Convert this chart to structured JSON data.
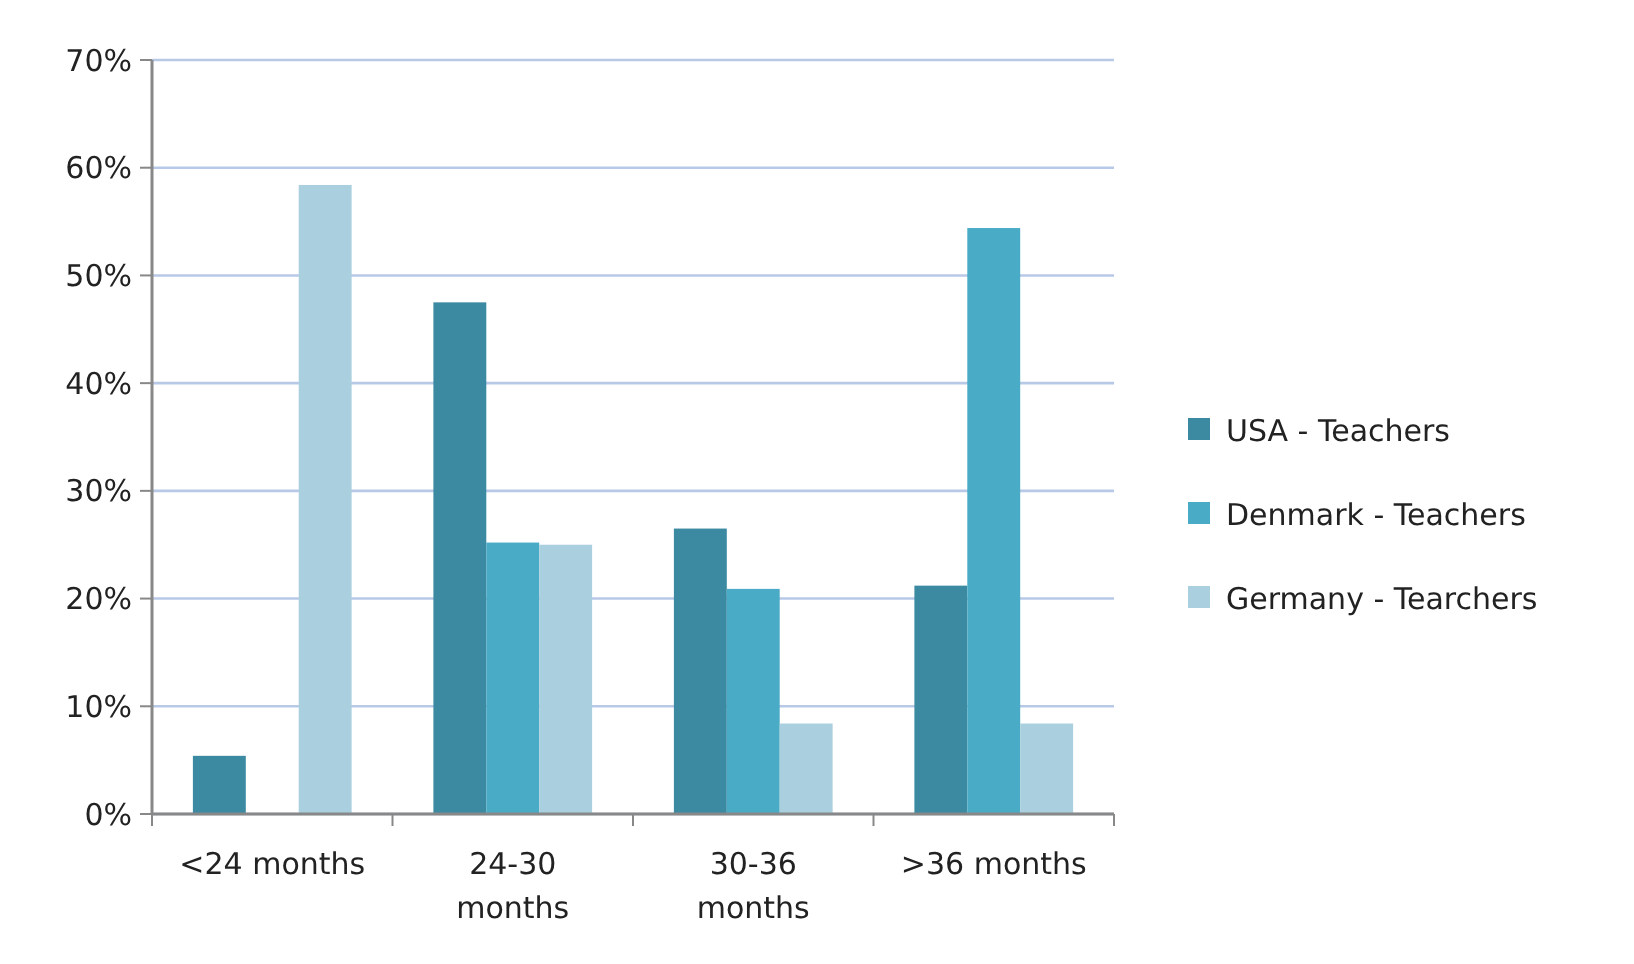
{
  "chart_data": {
    "type": "bar",
    "categories": [
      "<24 months",
      "24-30 months",
      "30-36 months",
      ">36 months"
    ],
    "series": [
      {
        "name": "USA - Teachers",
        "color": "#3b8aa2",
        "values": [
          5.4,
          47.5,
          26.5,
          21.2
        ]
      },
      {
        "name": "Denmark - Teachers",
        "color": "#4aabc6",
        "values": [
          0,
          25.2,
          20.9,
          54.4
        ]
      },
      {
        "name": "Germany - Tearchers",
        "color": "#aacfde",
        "values": [
          58.4,
          25,
          8.4,
          8.4
        ]
      }
    ],
    "ylim": [
      0,
      70
    ],
    "yticks": [
      {
        "value": 0,
        "label": "0%"
      },
      {
        "value": 10,
        "label": "10%"
      },
      {
        "value": 20,
        "label": "20%"
      },
      {
        "value": 30,
        "label": "30%"
      },
      {
        "value": 40,
        "label": "40%"
      },
      {
        "value": 50,
        "label": "50%"
      },
      {
        "value": 60,
        "label": "60%"
      },
      {
        "value": 70,
        "label": "70%"
      }
    ],
    "grid": "y",
    "legend": "right"
  }
}
